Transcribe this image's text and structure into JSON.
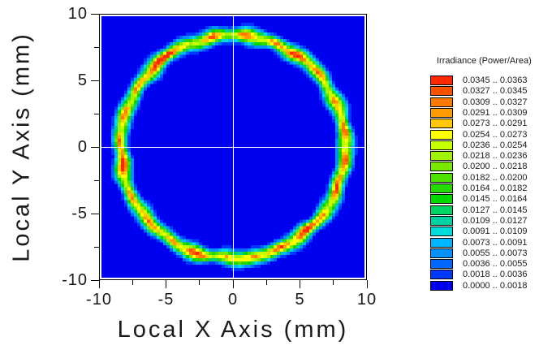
{
  "axes": {
    "x_range": [
      -10,
      10
    ],
    "y_range": [
      -10,
      10
    ],
    "x_ticks": [
      -10,
      -5,
      0,
      5,
      10
    ],
    "x_minor_ticks": [
      -7.5,
      -2.5,
      2.5,
      7.5
    ],
    "y_ticks": [
      10,
      5,
      0,
      -5,
      -10
    ],
    "y_minor_ticks": [
      7.5,
      2.5,
      -2.5,
      -7.5
    ]
  },
  "legend": {
    "separator": " .. "
  },
  "chart_data": {
    "type": "heatmap",
    "title": "",
    "xlabel": "Local X Axis (mm)",
    "ylabel": "Local Y Axis (mm)",
    "legend_title": "Irradiance (Power/Area)",
    "units": "mm",
    "x_range": [
      -10,
      10
    ],
    "y_range": [
      -10,
      10
    ],
    "grid": false,
    "legend_position": "right",
    "plot_background_color": "#0000F0",
    "crosshair": {
      "x": 0,
      "y": 0,
      "color": "#FFFFFF"
    },
    "colormap_bins": [
      {
        "min": 0.0345,
        "max": 0.0363,
        "color": "#FF2800"
      },
      {
        "min": 0.0327,
        "max": 0.0345,
        "color": "#FF5000"
      },
      {
        "min": 0.0309,
        "max": 0.0327,
        "color": "#FF7800"
      },
      {
        "min": 0.0291,
        "max": 0.0309,
        "color": "#FF9C00"
      },
      {
        "min": 0.0273,
        "max": 0.0291,
        "color": "#FFC800"
      },
      {
        "min": 0.0254,
        "max": 0.0273,
        "color": "#FFFF00"
      },
      {
        "min": 0.0236,
        "max": 0.0254,
        "color": "#C8FF00"
      },
      {
        "min": 0.0218,
        "max": 0.0236,
        "color": "#A0F400"
      },
      {
        "min": 0.02,
        "max": 0.0218,
        "color": "#78E800"
      },
      {
        "min": 0.0182,
        "max": 0.02,
        "color": "#50E000"
      },
      {
        "min": 0.0164,
        "max": 0.0182,
        "color": "#28D800"
      },
      {
        "min": 0.0145,
        "max": 0.0164,
        "color": "#00D800"
      },
      {
        "min": 0.0127,
        "max": 0.0145,
        "color": "#00D464"
      },
      {
        "min": 0.0109,
        "max": 0.0127,
        "color": "#00D0A0"
      },
      {
        "min": 0.0091,
        "max": 0.0109,
        "color": "#00DCDC"
      },
      {
        "min": 0.0073,
        "max": 0.0091,
        "color": "#00B4FF"
      },
      {
        "min": 0.0055,
        "max": 0.0073,
        "color": "#0090FF"
      },
      {
        "min": 0.0036,
        "max": 0.0055,
        "color": "#0068FF"
      },
      {
        "min": 0.0018,
        "max": 0.0036,
        "color": "#0038FF"
      },
      {
        "min": 0.0,
        "max": 0.0018,
        "color": "#0000F0"
      }
    ],
    "distribution": {
      "shape": "annulus",
      "center_mm": [
        0,
        0
      ],
      "mean_radius_mm": 8.55,
      "radial_sigma_mm": 0.34,
      "base_peak_irradiance": 0.0245,
      "max_irradiance": 0.0363,
      "background_irradiance": 0.0,
      "grid_cells": 81,
      "speckle": 0.06,
      "radius_harmonics": [
        [
          9,
          0.055,
          0.7
        ],
        [
          14,
          0.05,
          3.3
        ],
        [
          23,
          0.045,
          5.6
        ]
      ],
      "sigma_harmonics": [
        [
          13,
          0.04,
          2.1
        ],
        [
          19,
          0.025,
          0.4
        ]
      ],
      "intensity_harmonics": [
        [
          6,
          0.0013,
          1.1
        ],
        [
          11,
          0.0012,
          4.2
        ],
        [
          17,
          0.0011,
          2.6
        ]
      ],
      "hotspots": [
        {
          "angle_deg": 100,
          "peak": 0.0358,
          "width_deg": 3.5
        },
        {
          "angle_deg": 125,
          "peak": 0.033,
          "width_deg": 4
        },
        {
          "angle_deg": 133,
          "peak": 0.0362,
          "width_deg": 4.5
        },
        {
          "angle_deg": 148,
          "peak": 0.0312,
          "width_deg": 3
        },
        {
          "angle_deg": 163,
          "peak": 0.0345,
          "width_deg": 3.5
        },
        {
          "angle_deg": 177,
          "peak": 0.031,
          "width_deg": 3
        },
        {
          "angle_deg": 190,
          "peak": 0.0352,
          "width_deg": 4
        },
        {
          "angle_deg": 205,
          "peak": 0.0308,
          "width_deg": 3.5
        },
        {
          "angle_deg": 222,
          "peak": 0.0332,
          "width_deg": 4.5
        },
        {
          "angle_deg": 238,
          "peak": 0.0312,
          "width_deg": 3
        },
        {
          "angle_deg": 252,
          "peak": 0.0326,
          "width_deg": 3.5
        },
        {
          "angle_deg": 266,
          "peak": 0.0305,
          "width_deg": 3
        },
        {
          "angle_deg": 281,
          "peak": 0.0315,
          "width_deg": 3.5
        },
        {
          "angle_deg": 295,
          "peak": 0.0336,
          "width_deg": 4
        },
        {
          "angle_deg": 311,
          "peak": 0.036,
          "width_deg": 4.5
        },
        {
          "angle_deg": 323,
          "peak": 0.0322,
          "width_deg": 3
        },
        {
          "angle_deg": 338,
          "peak": 0.0362,
          "width_deg": 4
        },
        {
          "angle_deg": 352,
          "peak": 0.033,
          "width_deg": 3.5
        },
        {
          "angle_deg": 8,
          "peak": 0.0346,
          "width_deg": 3.5
        },
        {
          "angle_deg": 25,
          "peak": 0.0312,
          "width_deg": 3
        },
        {
          "angle_deg": 40,
          "peak": 0.0336,
          "width_deg": 4
        },
        {
          "angle_deg": 55,
          "peak": 0.0342,
          "width_deg": 3.5
        },
        {
          "angle_deg": 68,
          "peak": 0.0324,
          "width_deg": 3
        },
        {
          "angle_deg": 84,
          "peak": 0.0308,
          "width_deg": 3
        }
      ]
    }
  }
}
